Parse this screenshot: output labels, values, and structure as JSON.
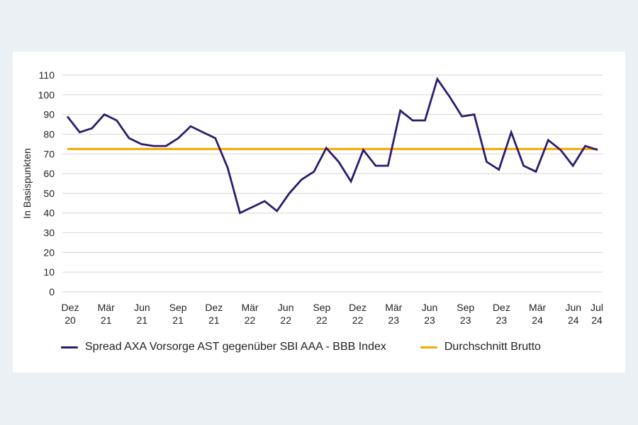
{
  "chart_data": {
    "type": "line",
    "title": "",
    "xlabel": "",
    "ylabel": "In Basispunkten",
    "ylim": [
      0,
      110
    ],
    "yticks": [
      0,
      10,
      20,
      30,
      40,
      50,
      60,
      70,
      80,
      90,
      100,
      110
    ],
    "grid": true,
    "legend_position": "bottom",
    "x_tick_labels": [
      {
        "line1": "Dez",
        "line2": "20",
        "month_index": 0
      },
      {
        "line1": "Mär",
        "line2": "21",
        "month_index": 3
      },
      {
        "line1": "Jun",
        "line2": "21",
        "month_index": 6
      },
      {
        "line1": "Sep",
        "line2": "21",
        "month_index": 9
      },
      {
        "line1": "Dez",
        "line2": "21",
        "month_index": 12
      },
      {
        "line1": "Mär",
        "line2": "22",
        "month_index": 15
      },
      {
        "line1": "Jun",
        "line2": "22",
        "month_index": 18
      },
      {
        "line1": "Sep",
        "line2": "22",
        "month_index": 21
      },
      {
        "line1": "Dez",
        "line2": "22",
        "month_index": 24
      },
      {
        "line1": "Mär",
        "line2": "23",
        "month_index": 27
      },
      {
        "line1": "Jun",
        "line2": "23",
        "month_index": 30
      },
      {
        "line1": "Sep",
        "line2": "23",
        "month_index": 33
      },
      {
        "line1": "Dez",
        "line2": "23",
        "month_index": 36
      },
      {
        "line1": "Mär",
        "line2": "24",
        "month_index": 39
      },
      {
        "line1": "Jun",
        "line2": "24",
        "month_index": 42
      },
      {
        "line1": "Jul",
        "line2": "24",
        "month_index": 43
      }
    ],
    "series": [
      {
        "name": "Spread AXA Vorsorge AST gegenüber SBI AAA - BBB Index",
        "color": "#2e1a6e",
        "values": [
          89,
          81,
          83,
          90,
          87,
          78,
          75,
          74,
          74,
          78,
          84,
          81,
          78,
          63,
          40,
          43,
          46,
          41,
          50,
          57,
          61,
          73,
          66,
          56,
          72,
          64,
          64,
          92,
          87,
          87,
          108,
          99,
          89,
          90,
          66,
          62,
          81,
          64,
          61,
          77,
          72,
          64,
          74,
          72
        ]
      },
      {
        "name": "Durchschnitt Brutto",
        "color": "#f5a800",
        "constant": 72.5
      }
    ]
  },
  "legend": {
    "items": [
      {
        "label": "Spread AXA Vorsorge AST gegenüber SBI AAA - BBB Index",
        "color": "#2e1a6e"
      },
      {
        "label": "Durchschnitt Brutto",
        "color": "#f5a800"
      }
    ]
  }
}
